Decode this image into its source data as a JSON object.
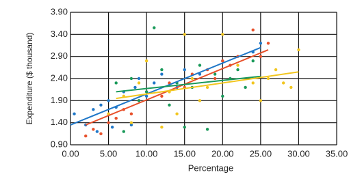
{
  "chart_data": {
    "type": "scatter",
    "xlabel": "Percentage",
    "ylabel": "Expenditure ($ thousand)",
    "xlim": [
      0,
      35
    ],
    "ylim": [
      0.9,
      3.9
    ],
    "xticks": [
      {
        "value": 0,
        "label": "0.00"
      },
      {
        "value": 5,
        "label": "5.00"
      },
      {
        "value": 10,
        "label": "10.00"
      },
      {
        "value": 15,
        "label": "15.00"
      },
      {
        "value": 20,
        "label": "20.00"
      },
      {
        "value": 25,
        "label": "25.00"
      },
      {
        "value": 30,
        "label": "30.00"
      },
      {
        "value": 35,
        "label": "35.00"
      }
    ],
    "yticks": [
      {
        "value": 0.9,
        "label": "0.90"
      },
      {
        "value": 1.4,
        "label": "1.40"
      },
      {
        "value": 1.9,
        "label": "1.90"
      },
      {
        "value": 2.4,
        "label": "2.40"
      },
      {
        "value": 2.9,
        "label": "2.90"
      },
      {
        "value": 3.4,
        "label": "3.40"
      },
      {
        "value": 3.9,
        "label": "3.90"
      }
    ],
    "grid": true,
    "series": [
      {
        "color": "#1f77c8",
        "x": [
          0.5,
          2,
          3,
          3.5,
          4,
          5,
          5.5,
          6,
          7,
          8,
          8.5,
          9,
          10,
          11,
          12,
          14,
          15,
          17,
          20,
          24,
          25
        ],
        "values": [
          1.6,
          1.35,
          1.7,
          1.2,
          1.8,
          1.9,
          1.3,
          1.75,
          2.1,
          1.35,
          2.2,
          2.4,
          2.0,
          2.3,
          2.5,
          2.2,
          2.6,
          2.5,
          2.8,
          3.0,
          3.2
        ],
        "trend": {
          "x": [
            0,
            25
          ],
          "values": [
            1.35,
            3.1
          ]
        }
      },
      {
        "color": "#e8502a",
        "x": [
          2,
          3,
          4,
          5,
          6,
          7,
          8,
          9,
          10,
          12,
          13,
          15,
          16,
          18,
          19,
          20,
          21,
          22,
          24,
          25,
          26
        ],
        "values": [
          1.1,
          1.25,
          1.15,
          1.4,
          1.5,
          1.7,
          1.6,
          1.9,
          2.1,
          2.0,
          2.3,
          2.2,
          2.5,
          2.6,
          2.4,
          2.8,
          2.7,
          2.9,
          3.5,
          2.9,
          3.2
        ],
        "trend": {
          "x": [
            2,
            26
          ],
          "values": [
            1.35,
            3.05
          ]
        }
      },
      {
        "color": "#1a9a5a",
        "x": [
          6,
          7,
          8,
          9,
          10,
          11,
          12,
          13,
          14,
          15,
          16,
          17,
          18,
          19,
          20,
          21,
          22,
          23,
          24
        ],
        "values": [
          2.3,
          1.2,
          2.4,
          1.9,
          2.1,
          3.55,
          2.6,
          1.8,
          2.3,
          1.3,
          2.2,
          2.7,
          1.25,
          2.5,
          2.0,
          2.4,
          2.6,
          2.2,
          2.8
        ],
        "trend": {
          "x": [
            6,
            25
          ],
          "values": [
            2.1,
            2.45
          ]
        }
      },
      {
        "color": "#f2c61f",
        "x": [
          5,
          7,
          8,
          9,
          10,
          12,
          13,
          14,
          15,
          16,
          17,
          18,
          20,
          22,
          24,
          25,
          26,
          27,
          28,
          29,
          30
        ],
        "values": [
          1.6,
          2.0,
          1.4,
          2.3,
          2.8,
          1.3,
          2.1,
          1.6,
          3.4,
          2.4,
          1.9,
          2.2,
          3.4,
          2.7,
          2.3,
          1.9,
          2.4,
          2.6,
          2.3,
          2.2,
          3.05
        ],
        "trend": {
          "x": [
            6,
            30
          ],
          "values": [
            1.95,
            2.55
          ]
        }
      }
    ]
  }
}
